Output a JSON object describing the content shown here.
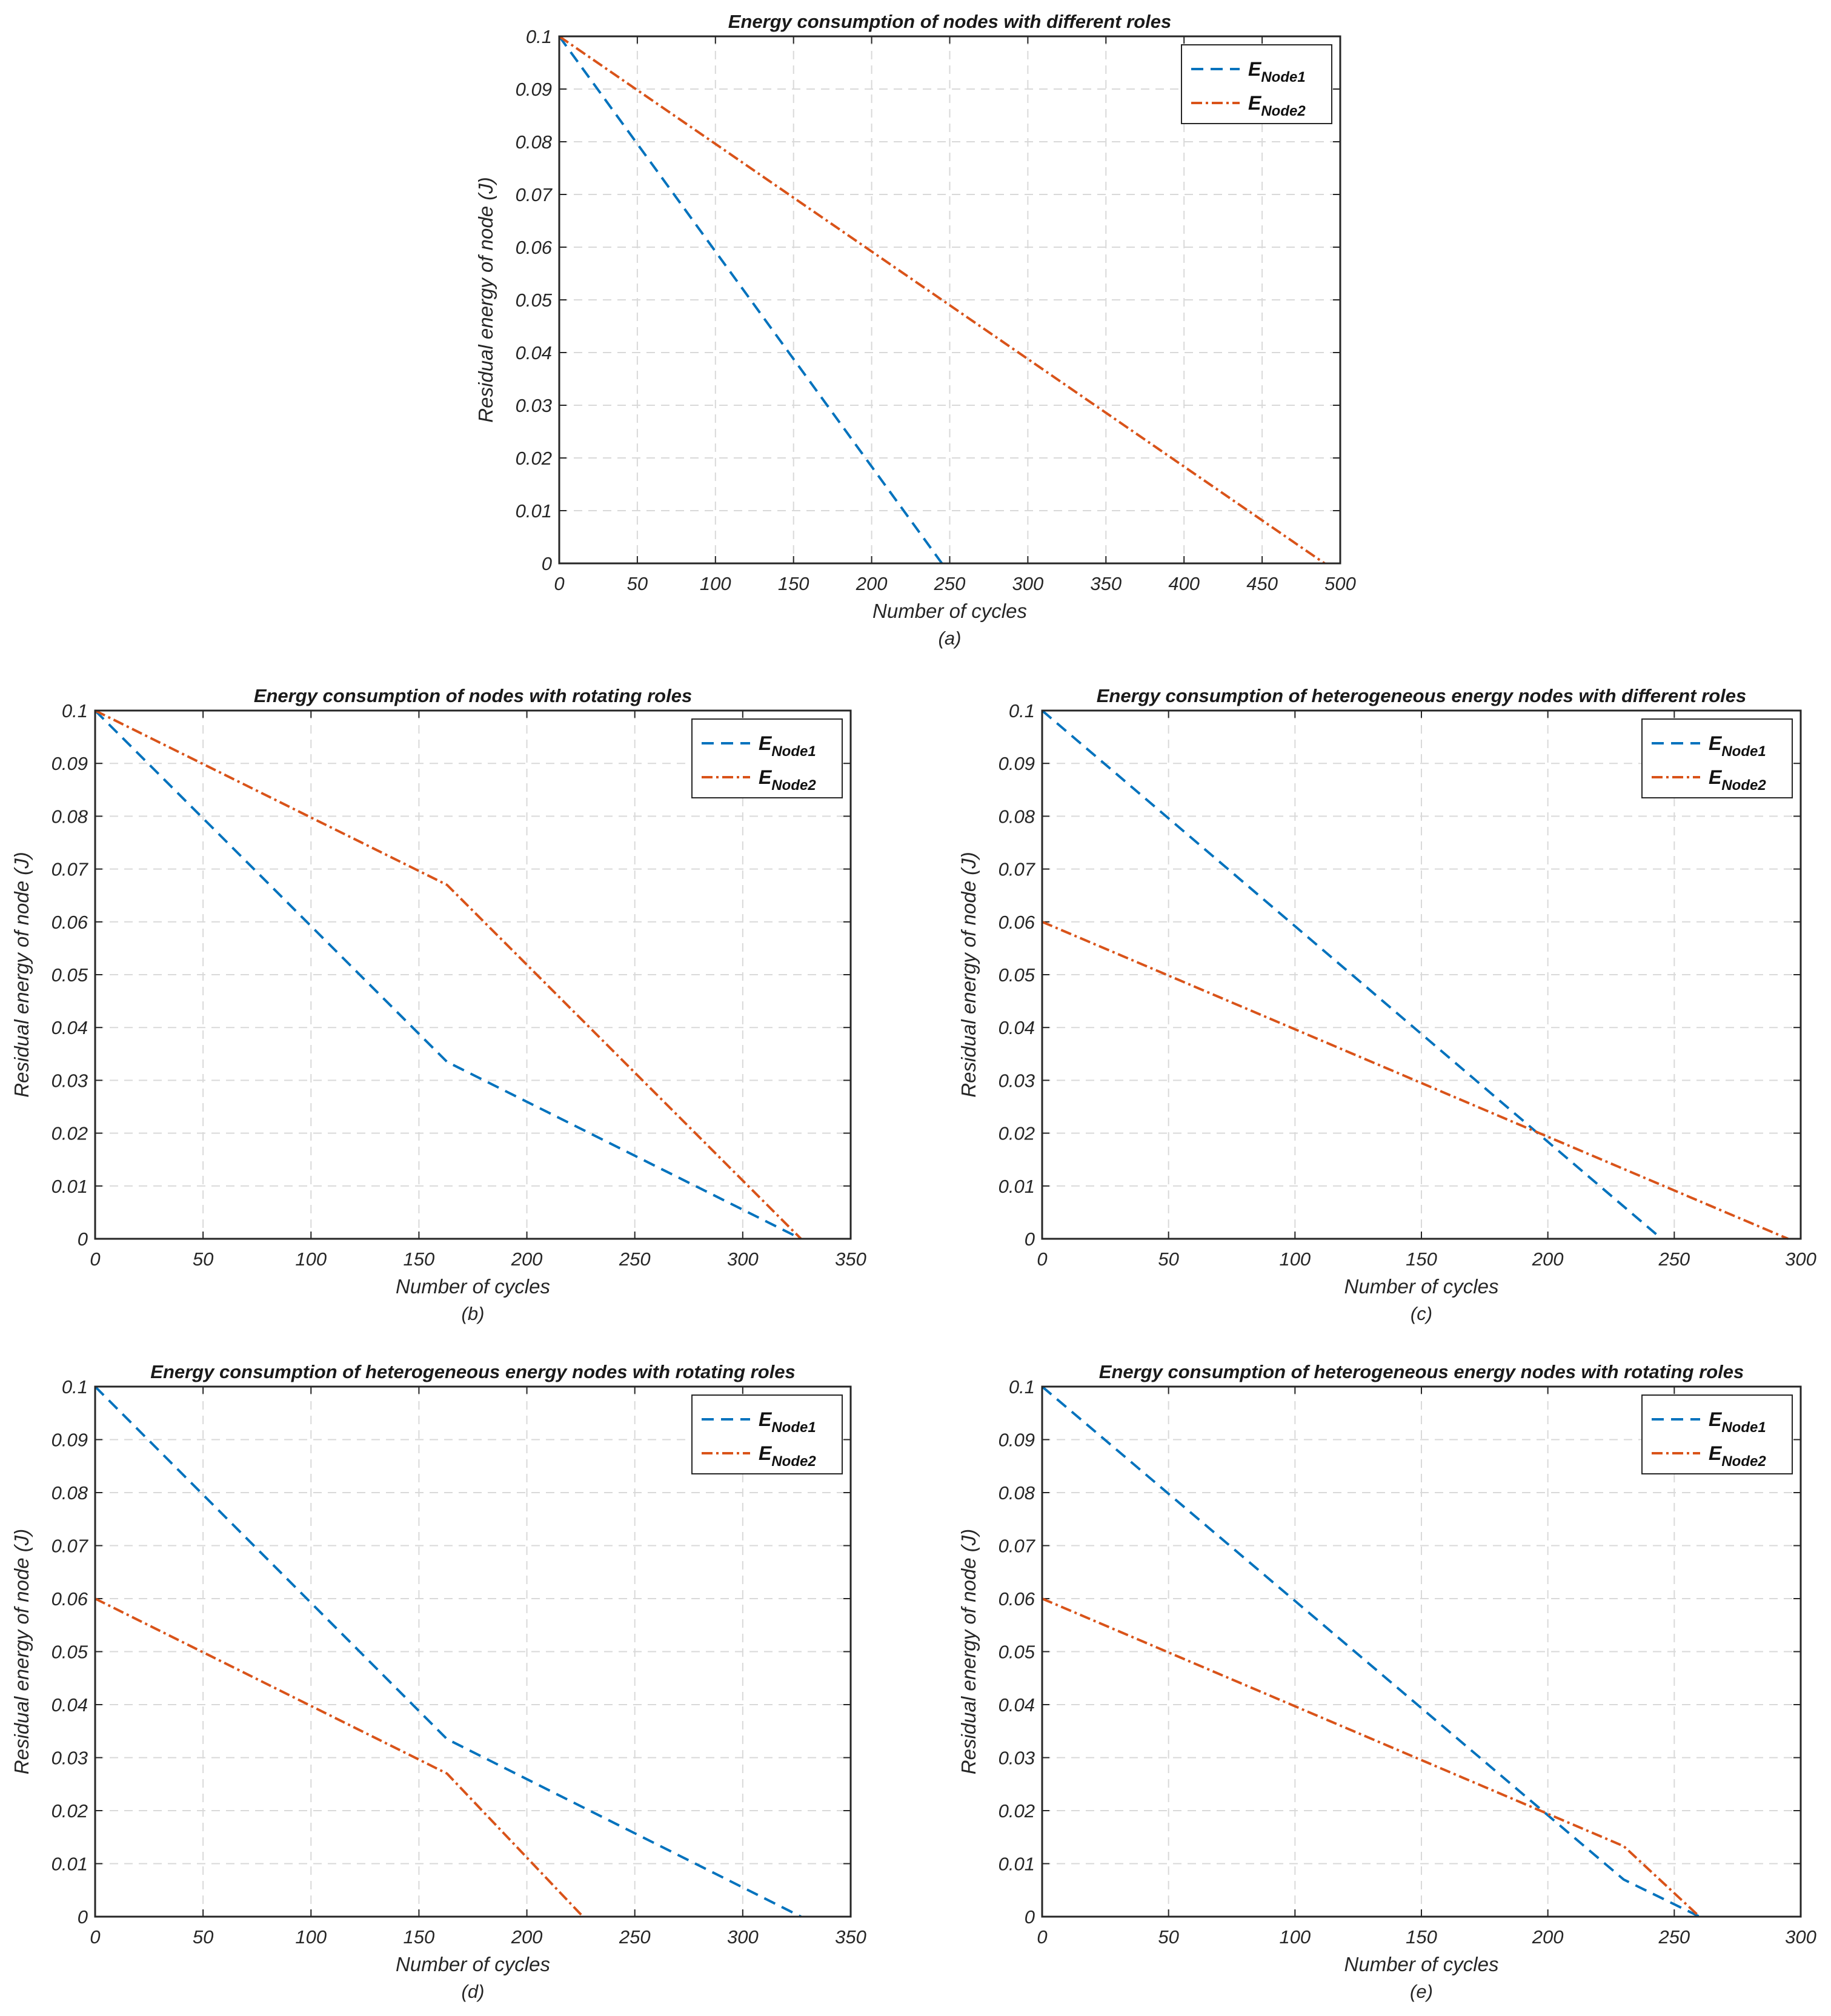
{
  "chart_data": [
    {
      "id": "a",
      "type": "line",
      "title": "Energy consumption of nodes with different roles",
      "xlabel": "Number of cycles",
      "ylabel": "Residual energy of node (J)",
      "caption": "(a)",
      "xlim": [
        0,
        500
      ],
      "ylim": [
        0,
        0.1
      ],
      "xticks": [
        0,
        50,
        100,
        150,
        200,
        250,
        300,
        350,
        400,
        450,
        500
      ],
      "yticks": [
        0,
        0.01,
        0.02,
        0.03,
        0.04,
        0.05,
        0.06,
        0.07,
        0.08,
        0.09,
        0.1
      ],
      "grid": true,
      "legend_position": "top-right",
      "series": [
        {
          "name": "E",
          "subscript": "Node1",
          "color": "#0072BD",
          "style": "dashed",
          "x": [
            0,
            245
          ],
          "y": [
            0.1,
            0
          ]
        },
        {
          "name": "E",
          "subscript": "Node2",
          "color": "#D95319",
          "style": "dashdot",
          "x": [
            0,
            490
          ],
          "y": [
            0.1,
            0
          ]
        }
      ]
    },
    {
      "id": "b",
      "type": "line",
      "title": "Energy consumption of nodes with rotating roles",
      "xlabel": "Number of cycles",
      "ylabel": "Residual energy of node (J)",
      "caption": "(b)",
      "xlim": [
        0,
        350
      ],
      "ylim": [
        0,
        0.1
      ],
      "xticks": [
        0,
        50,
        100,
        150,
        200,
        250,
        300,
        350
      ],
      "yticks": [
        0,
        0.01,
        0.02,
        0.03,
        0.04,
        0.05,
        0.06,
        0.07,
        0.08,
        0.09,
        0.1
      ],
      "grid": true,
      "legend_position": "top-right",
      "series": [
        {
          "name": "E",
          "subscript": "Node1",
          "color": "#0072BD",
          "style": "dashed",
          "x": [
            0,
            163,
            327
          ],
          "y": [
            0.1,
            0.0335,
            0
          ]
        },
        {
          "name": "E",
          "subscript": "Node2",
          "color": "#D95319",
          "style": "dashdot",
          "x": [
            0,
            163,
            327
          ],
          "y": [
            0.1,
            0.067,
            0
          ]
        }
      ]
    },
    {
      "id": "c",
      "type": "line",
      "title": "Energy consumption of heterogeneous energy nodes with different roles",
      "xlabel": "Number of cycles",
      "ylabel": "Residual energy of node (J)",
      "caption": "(c)",
      "xlim": [
        0,
        300
      ],
      "ylim": [
        0,
        0.1
      ],
      "xticks": [
        0,
        50,
        100,
        150,
        200,
        250,
        300
      ],
      "yticks": [
        0,
        0.01,
        0.02,
        0.03,
        0.04,
        0.05,
        0.06,
        0.07,
        0.08,
        0.09,
        0.1
      ],
      "grid": true,
      "legend_position": "top-right",
      "series": [
        {
          "name": "E",
          "subscript": "Node1",
          "color": "#0072BD",
          "style": "dashed",
          "x": [
            0,
            245
          ],
          "y": [
            0.1,
            0
          ]
        },
        {
          "name": "E",
          "subscript": "Node2",
          "color": "#D95319",
          "style": "dashdot",
          "x": [
            0,
            295
          ],
          "y": [
            0.06,
            0
          ]
        }
      ]
    },
    {
      "id": "d",
      "type": "line",
      "title": "Energy consumption of heterogeneous energy nodes with rotating roles",
      "xlabel": "Number of cycles",
      "ylabel": "Residual energy of node (J)",
      "caption": "(d)",
      "xlim": [
        0,
        350
      ],
      "ylim": [
        0,
        0.1
      ],
      "xticks": [
        0,
        50,
        100,
        150,
        200,
        250,
        300,
        350
      ],
      "yticks": [
        0,
        0.01,
        0.02,
        0.03,
        0.04,
        0.05,
        0.06,
        0.07,
        0.08,
        0.09,
        0.1
      ],
      "grid": true,
      "legend_position": "top-right",
      "series": [
        {
          "name": "E",
          "subscript": "Node1",
          "color": "#0072BD",
          "style": "dashed",
          "x": [
            0,
            163,
            327
          ],
          "y": [
            0.1,
            0.0335,
            0
          ]
        },
        {
          "name": "E",
          "subscript": "Node2",
          "color": "#D95319",
          "style": "dashdot",
          "x": [
            0,
            163,
            226
          ],
          "y": [
            0.06,
            0.027,
            0
          ]
        }
      ]
    },
    {
      "id": "e",
      "type": "line",
      "title": "Energy consumption of heterogeneous energy nodes with rotating roles",
      "xlabel": "Number of cycles",
      "ylabel": "Residual energy of node (J)",
      "caption": "(e)",
      "xlim": [
        0,
        300
      ],
      "ylim": [
        0,
        0.1
      ],
      "xticks": [
        0,
        50,
        100,
        150,
        200,
        250,
        300
      ],
      "yticks": [
        0,
        0.01,
        0.02,
        0.03,
        0.04,
        0.05,
        0.06,
        0.07,
        0.08,
        0.09,
        0.1
      ],
      "grid": true,
      "legend_position": "top-right",
      "series": [
        {
          "name": "E",
          "subscript": "Node1",
          "color": "#0072BD",
          "style": "dashed",
          "x": [
            0,
            230,
            260
          ],
          "y": [
            0.1,
            0.007,
            0
          ]
        },
        {
          "name": "E",
          "subscript": "Node2",
          "color": "#D95319",
          "style": "dashdot",
          "x": [
            0,
            230,
            260
          ],
          "y": [
            0.06,
            0.0133,
            0
          ]
        }
      ]
    }
  ]
}
